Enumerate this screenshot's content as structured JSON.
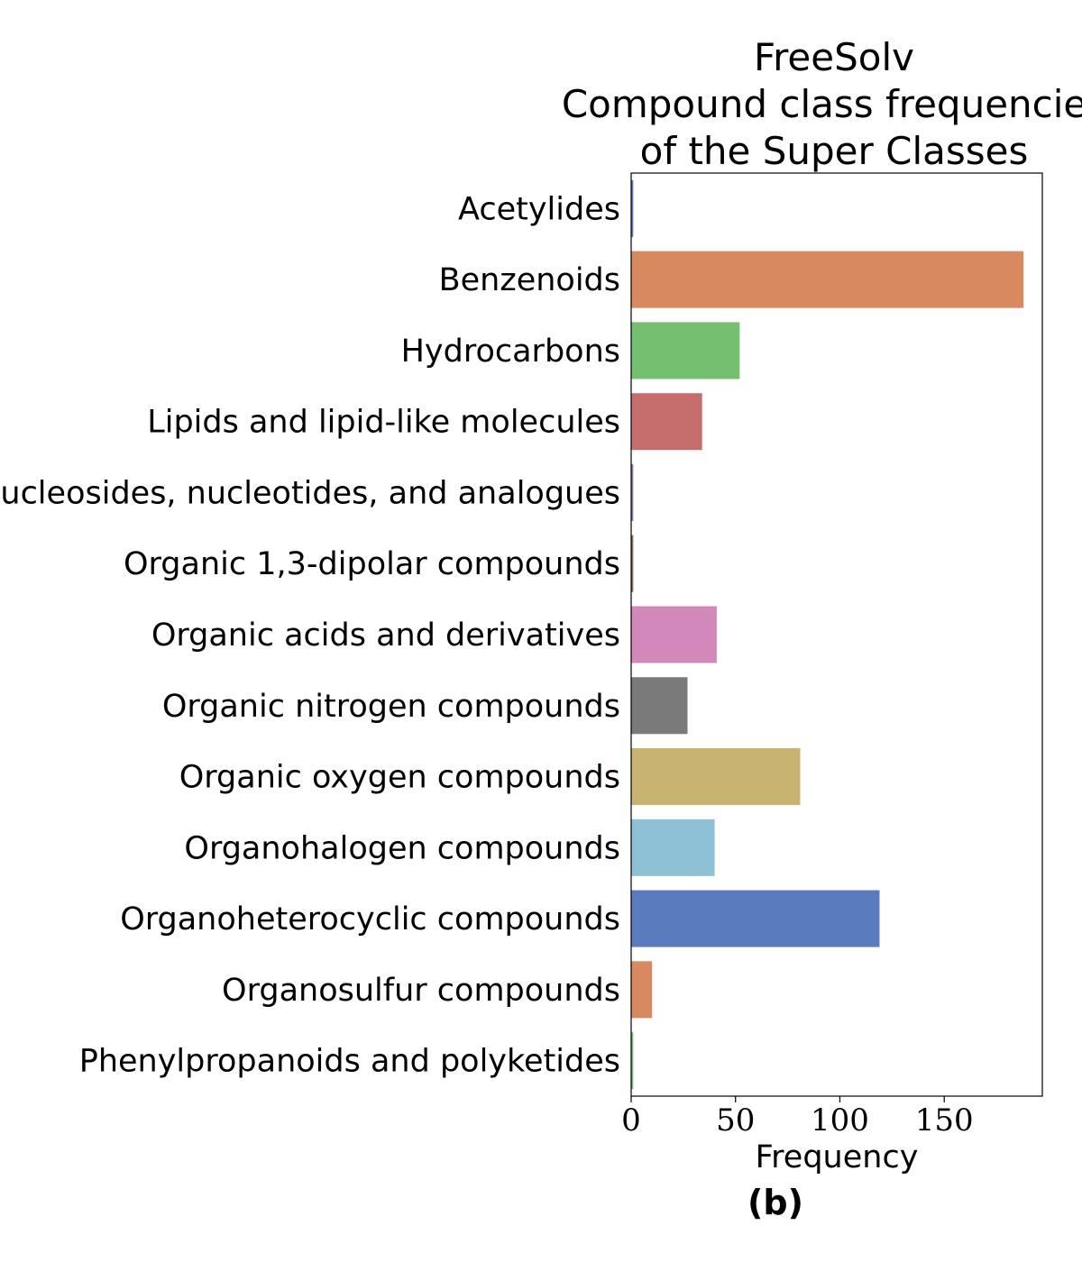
{
  "chart_data": {
    "type": "bar",
    "orientation": "horizontal",
    "title_lines": [
      "FreeSolv",
      "Compound class frequencies",
      "of the Super Classes"
    ],
    "xlabel": "Frequency",
    "ylabel": "",
    "panel_label": "(b)",
    "xlim": [
      0,
      197
    ],
    "xticks": [
      0,
      50,
      100,
      150
    ],
    "grid": false,
    "legend": "none",
    "categories": [
      "Acetylides",
      "Benzenoids",
      "Hydrocarbons",
      "Lipids and lipid-like molecules",
      "Nucleosides, nucleotides, and analogues",
      "Organic 1,3-dipolar compounds",
      "Organic acids and derivatives",
      "Organic nitrogen compounds",
      "Organic oxygen compounds",
      "Organohalogen compounds",
      "Organoheterocyclic compounds",
      "Organosulfur compounds",
      "Phenylpropanoids and polyketides"
    ],
    "values": [
      1,
      188,
      52,
      34,
      1,
      1,
      41,
      27,
      81,
      40,
      119,
      10,
      1
    ],
    "colors": [
      "#5b7bbf",
      "#d9895f",
      "#74c06f",
      "#c66d6d",
      "#9277b7",
      "#8c6a54",
      "#d388bb",
      "#7a7a7a",
      "#c8b373",
      "#8ec0d6",
      "#5b7bbf",
      "#d9895f",
      "#74c06f"
    ]
  }
}
